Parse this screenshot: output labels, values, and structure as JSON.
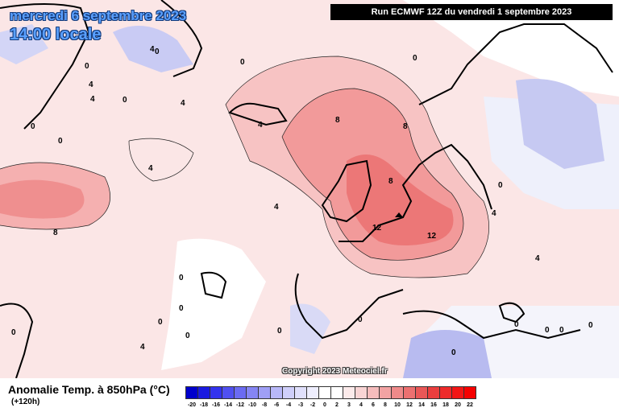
{
  "header": {
    "date": "mercredi 6 septembre 2023",
    "time": "14:00 locale",
    "run": "Run ECMWF 12Z du vendredi 1 septembre 2023"
  },
  "copyright": "Copyright 2023 Meteociel.fr",
  "legend": {
    "title": "Anomalie Temp. à 850hPa (°C)",
    "forecast": "(+120h)",
    "scale_labels": [
      "-20",
      "-18",
      "-16",
      "-14",
      "-12",
      "-10",
      "-8",
      "-6",
      "-4",
      "-3",
      "-2",
      "0",
      "2",
      "3",
      "4",
      "6",
      "8",
      "10",
      "12",
      "14",
      "16",
      "18",
      "20",
      "22"
    ],
    "scale_colors": [
      "#0000cc",
      "#1a1ae0",
      "#3333ee",
      "#5050f0",
      "#6b6bf2",
      "#8585f4",
      "#9f9ff6",
      "#b8b8f8",
      "#cfcffa",
      "#e0e0fc",
      "#eeeefe",
      "#ffffff",
      "#ffffff",
      "#fbeaea",
      "#f8d4d4",
      "#f5bcbc",
      "#f2a3a3",
      "#ef8a8a",
      "#ec7070",
      "#e95757",
      "#ea3e3e",
      "#ee2a2a",
      "#f21616",
      "#f60000"
    ],
    "colors": {
      "positive_accent": "#ec7070",
      "negative_accent": "#8585f4",
      "title_blue": "#5aa0ff"
    }
  },
  "map": {
    "contour_labels": [
      "0",
      "0",
      "0",
      "0",
      "0",
      "0",
      "0",
      "0",
      "0",
      "0",
      "0",
      "0",
      "0",
      "0",
      "0",
      "0",
      "0",
      "0",
      "0",
      "0",
      "4",
      "4",
      "4",
      "4",
      "4",
      "4",
      "4",
      "4",
      "4",
      "4",
      "8",
      "8",
      "8",
      "8",
      "12",
      "12"
    ]
  }
}
